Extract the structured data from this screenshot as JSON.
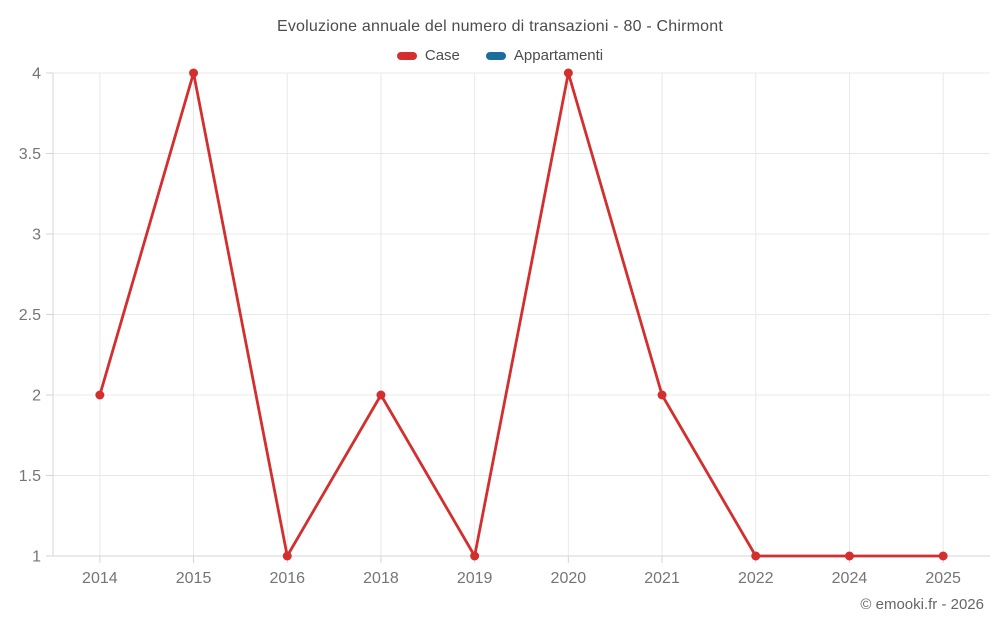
{
  "header": {
    "title": "Evoluzione annuale del numero di transazioni - 80 - Chirmont"
  },
  "legend": {
    "items": [
      {
        "label": "Case",
        "color": "#d32f2f"
      },
      {
        "label": "Appartamenti",
        "color": "#1a6d9e"
      }
    ]
  },
  "footer": {
    "credit": "© emooki.fr - 2026"
  },
  "chart_data": {
    "type": "line",
    "title": "Evoluzione annuale del numero di transazioni - 80 - Chirmont",
    "categories": [
      "2014",
      "2015",
      "2016",
      "2018",
      "2019",
      "2020",
      "2021",
      "2022",
      "2024",
      "2025"
    ],
    "series": [
      {
        "name": "Case",
        "color": "#d32f2f",
        "values": [
          2,
          4,
          1,
          2,
          1,
          4,
          2,
          1,
          1,
          1
        ]
      },
      {
        "name": "Appartamenti",
        "color": "#1a6d9e",
        "values": []
      }
    ],
    "xlabel": "",
    "ylabel": "",
    "ylim": [
      1,
      4
    ],
    "yticks": [
      1,
      1.5,
      2,
      2.5,
      3,
      3.5,
      4
    ],
    "grid": true,
    "legend_position": "top",
    "marker": "circle"
  },
  "style": {
    "background": "#ffffff",
    "grid_color": "#e8e8e8",
    "axis_color": "#d6d6d6",
    "tick_label_color": "#757575",
    "title_color": "#4c4c4c",
    "footer_color": "#666666",
    "tick_label_size": 16
  }
}
